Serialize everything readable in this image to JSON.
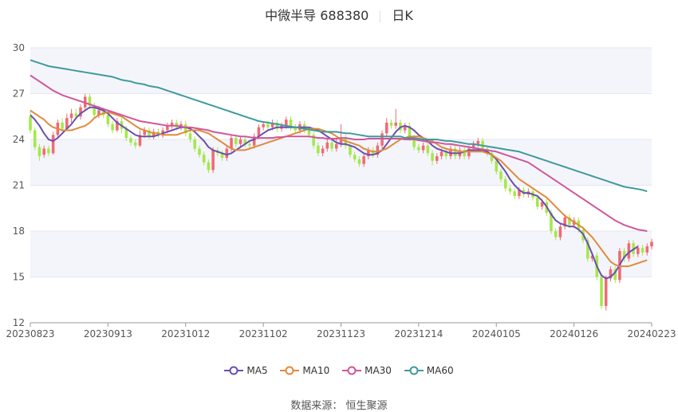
{
  "chart_data": {
    "type": "candlestick",
    "title": "中微半导 688380",
    "period": "日K",
    "ylim": [
      12,
      30
    ],
    "yticks": [
      12,
      15,
      18,
      21,
      24,
      27,
      30
    ],
    "xtick_labels": [
      "20230823",
      "20230913",
      "20231012",
      "20231102",
      "20231123",
      "20231214",
      "20240105",
      "20240126",
      "20240223"
    ],
    "up_color": "#ef6a74",
    "down_color": "#a4e84a",
    "grid": true,
    "legend_position": "bottom",
    "candles": [
      [
        25.5,
        24.6,
        25.9,
        24.4
      ],
      [
        24.6,
        23.5,
        24.8,
        23.3
      ],
      [
        23.5,
        22.9,
        23.7,
        22.6
      ],
      [
        23.0,
        23.4,
        23.6,
        22.8
      ],
      [
        23.4,
        23.1,
        23.6,
        22.9
      ],
      [
        23.1,
        24.3,
        24.5,
        23.0
      ],
      [
        24.3,
        25.1,
        25.3,
        24.1
      ],
      [
        25.1,
        24.7,
        25.4,
        24.5
      ],
      [
        24.7,
        25.4,
        25.7,
        24.6
      ],
      [
        25.4,
        25.7,
        26.0,
        25.1
      ],
      [
        25.7,
        25.5,
        26.0,
        25.3
      ],
      [
        25.5,
        26.1,
        26.3,
        25.3
      ],
      [
        26.1,
        26.8,
        27.0,
        25.9
      ],
      [
        26.8,
        26.2,
        27.0,
        26.0
      ],
      [
        26.2,
        25.6,
        26.4,
        25.4
      ],
      [
        25.6,
        25.9,
        26.2,
        25.4
      ],
      [
        25.9,
        25.6,
        26.1,
        25.4
      ],
      [
        25.6,
        25.0,
        25.8,
        24.8
      ],
      [
        25.0,
        24.6,
        25.2,
        24.4
      ],
      [
        24.6,
        25.2,
        25.4,
        24.5
      ],
      [
        25.2,
        24.7,
        25.4,
        24.4
      ],
      [
        24.7,
        24.1,
        24.9,
        23.9
      ],
      [
        24.1,
        23.8,
        24.3,
        23.6
      ],
      [
        23.8,
        23.6,
        24.0,
        23.4
      ],
      [
        23.6,
        24.3,
        24.6,
        23.5
      ],
      [
        24.3,
        24.6,
        24.8,
        24.1
      ],
      [
        24.6,
        24.2,
        24.8,
        24.0
      ],
      [
        24.2,
        24.5,
        24.7,
        24.0
      ],
      [
        24.5,
        24.3,
        24.7,
        24.1
      ],
      [
        24.3,
        24.6,
        24.8,
        24.1
      ],
      [
        24.6,
        24.9,
        25.1,
        24.4
      ],
      [
        24.9,
        25.1,
        25.3,
        24.7
      ],
      [
        25.1,
        24.8,
        25.3,
        24.6
      ],
      [
        24.8,
        25.0,
        25.2,
        24.6
      ],
      [
        25.0,
        24.4,
        25.2,
        24.2
      ],
      [
        24.4,
        24.0,
        24.6,
        23.8
      ],
      [
        24.0,
        23.4,
        24.2,
        23.2
      ],
      [
        23.4,
        23.0,
        23.6,
        22.8
      ],
      [
        23.0,
        22.5,
        23.2,
        22.3
      ],
      [
        22.5,
        22.0,
        22.7,
        21.8
      ],
      [
        22.0,
        23.3,
        23.5,
        21.8
      ],
      [
        23.3,
        23.1,
        23.5,
        22.9
      ],
      [
        23.1,
        22.8,
        23.3,
        22.6
      ],
      [
        22.8,
        23.4,
        23.6,
        22.6
      ],
      [
        23.4,
        24.1,
        24.3,
        23.2
      ],
      [
        24.1,
        23.7,
        24.3,
        23.5
      ],
      [
        23.7,
        24.0,
        24.2,
        23.5
      ],
      [
        24.0,
        23.7,
        24.2,
        23.5
      ],
      [
        23.7,
        23.6,
        23.9,
        23.4
      ],
      [
        23.6,
        24.2,
        24.4,
        23.4
      ],
      [
        24.2,
        24.8,
        25.0,
        24.0
      ],
      [
        24.8,
        25.0,
        25.2,
        24.6
      ],
      [
        25.0,
        24.8,
        25.2,
        24.6
      ],
      [
        24.8,
        25.1,
        25.3,
        24.6
      ],
      [
        25.1,
        24.7,
        25.3,
        24.5
      ],
      [
        24.7,
        24.9,
        25.1,
        24.5
      ],
      [
        24.9,
        25.3,
        25.5,
        24.7
      ],
      [
        25.3,
        24.8,
        25.5,
        24.6
      ],
      [
        24.8,
        24.6,
        25.0,
        24.4
      ],
      [
        24.6,
        25.0,
        25.2,
        24.4
      ],
      [
        25.0,
        24.6,
        25.2,
        24.4
      ],
      [
        24.6,
        24.3,
        24.8,
        24.1
      ],
      [
        24.3,
        23.6,
        24.5,
        23.4
      ],
      [
        23.6,
        23.1,
        23.8,
        22.9
      ],
      [
        23.1,
        23.4,
        23.6,
        22.9
      ],
      [
        23.4,
        23.8,
        24.0,
        23.2
      ],
      [
        23.8,
        23.4,
        24.0,
        23.2
      ],
      [
        23.4,
        23.7,
        24.0,
        23.2
      ],
      [
        23.7,
        24.1,
        25.0,
        23.5
      ],
      [
        24.1,
        23.6,
        24.3,
        23.4
      ],
      [
        23.6,
        23.0,
        23.8,
        22.8
      ],
      [
        23.0,
        22.7,
        23.2,
        22.5
      ],
      [
        22.7,
        22.4,
        22.9,
        22.2
      ],
      [
        22.4,
        22.9,
        23.1,
        22.2
      ],
      [
        22.9,
        23.3,
        23.5,
        22.7
      ],
      [
        23.3,
        23.0,
        23.5,
        22.8
      ],
      [
        23.0,
        23.6,
        23.8,
        22.8
      ],
      [
        23.6,
        24.4,
        24.6,
        23.4
      ],
      [
        24.4,
        25.1,
        25.4,
        24.2
      ],
      [
        25.1,
        24.9,
        25.3,
        24.7
      ],
      [
        24.9,
        25.1,
        26.0,
        24.7
      ],
      [
        25.1,
        24.6,
        25.3,
        24.4
      ],
      [
        24.6,
        24.9,
        25.1,
        24.4
      ],
      [
        24.9,
        24.1,
        25.1,
        23.9
      ],
      [
        24.1,
        23.5,
        24.3,
        23.3
      ],
      [
        23.5,
        23.3,
        23.7,
        23.1
      ],
      [
        23.3,
        23.6,
        23.8,
        23.1
      ],
      [
        23.6,
        23.1,
        23.8,
        22.9
      ],
      [
        23.1,
        22.6,
        23.3,
        22.3
      ],
      [
        22.6,
        22.9,
        23.1,
        22.4
      ],
      [
        22.9,
        23.2,
        23.4,
        22.7
      ],
      [
        23.2,
        22.9,
        23.4,
        22.7
      ],
      [
        22.9,
        23.4,
        23.6,
        22.7
      ],
      [
        23.4,
        22.9,
        23.6,
        22.7
      ],
      [
        22.9,
        23.3,
        23.5,
        22.7
      ],
      [
        23.3,
        22.9,
        23.5,
        22.7
      ],
      [
        22.9,
        23.4,
        23.6,
        22.7
      ],
      [
        23.4,
        23.7,
        23.9,
        23.2
      ],
      [
        23.7,
        23.9,
        24.1,
        23.5
      ],
      [
        23.9,
        23.4,
        24.1,
        23.2
      ],
      [
        23.4,
        23.1,
        23.6,
        22.9
      ],
      [
        23.1,
        22.6,
        23.3,
        22.4
      ],
      [
        22.6,
        21.9,
        22.8,
        21.7
      ],
      [
        21.9,
        21.4,
        22.1,
        21.2
      ],
      [
        21.4,
        20.8,
        21.6,
        20.6
      ],
      [
        20.8,
        20.6,
        21.0,
        20.4
      ],
      [
        20.6,
        20.3,
        20.8,
        20.1
      ],
      [
        20.3,
        20.7,
        20.9,
        20.1
      ],
      [
        20.7,
        20.4,
        20.9,
        20.2
      ],
      [
        20.4,
        20.6,
        20.8,
        20.2
      ],
      [
        20.6,
        20.2,
        20.8,
        20.0
      ],
      [
        20.2,
        19.6,
        20.4,
        19.4
      ],
      [
        19.6,
        19.9,
        20.1,
        19.4
      ],
      [
        19.9,
        19.2,
        20.1,
        19.0
      ],
      [
        19.2,
        18.0,
        19.4,
        17.8
      ],
      [
        18.0,
        17.6,
        18.2,
        17.4
      ],
      [
        17.6,
        18.3,
        18.5,
        17.4
      ],
      [
        18.3,
        18.9,
        19.1,
        18.1
      ],
      [
        18.9,
        18.4,
        19.1,
        18.2
      ],
      [
        18.4,
        18.7,
        18.9,
        18.2
      ],
      [
        18.7,
        18.1,
        18.9,
        17.9
      ],
      [
        18.1,
        17.4,
        18.3,
        17.2
      ],
      [
        17.4,
        16.2,
        17.6,
        16.0
      ],
      [
        16.2,
        16.4,
        16.6,
        16.0
      ],
      [
        16.4,
        15.0,
        16.6,
        14.8
      ],
      [
        15.0,
        13.1,
        15.2,
        12.9
      ],
      [
        13.1,
        14.9,
        15.1,
        12.8
      ],
      [
        14.9,
        15.5,
        15.7,
        14.7
      ],
      [
        15.5,
        14.8,
        15.7,
        14.6
      ],
      [
        14.8,
        16.7,
        16.9,
        14.6
      ],
      [
        16.7,
        16.2,
        16.9,
        16.0
      ],
      [
        16.2,
        17.2,
        17.4,
        16.0
      ],
      [
        17.2,
        16.5,
        17.4,
        16.3
      ],
      [
        16.5,
        16.9,
        17.1,
        16.3
      ],
      [
        16.9,
        16.6,
        17.1,
        16.4
      ],
      [
        16.6,
        17.0,
        17.2,
        16.4
      ],
      [
        17.0,
        17.3,
        17.5,
        16.8
      ]
    ],
    "series": [
      {
        "name": "MA5",
        "color": "#6a4fb0",
        "values": [
          25.6,
          25.3,
          24.9,
          24.4,
          24.0,
          23.9,
          24.1,
          24.4,
          24.7,
          25.0,
          25.4,
          25.7,
          25.9,
          26.1,
          26.1,
          26.0,
          25.9,
          25.7,
          25.4,
          25.1,
          24.9,
          24.7,
          24.5,
          24.3,
          24.2,
          24.2,
          24.2,
          24.2,
          24.3,
          24.4,
          24.5,
          24.6,
          24.7,
          24.8,
          24.8,
          24.7,
          24.5,
          24.2,
          23.9,
          23.5,
          23.3,
          23.2,
          23.1,
          23.0,
          23.1,
          23.3,
          23.5,
          23.7,
          23.9,
          24.0,
          24.2,
          24.4,
          24.6,
          24.7,
          24.8,
          24.8,
          24.8,
          24.8,
          24.8,
          24.8,
          24.8,
          24.8,
          24.7,
          24.6,
          24.4,
          24.2,
          24.0,
          23.8,
          23.7,
          23.7,
          23.6,
          23.5,
          23.3,
          23.1,
          23.0,
          23.0,
          23.1,
          23.3,
          23.7,
          24.1,
          24.5,
          24.8,
          24.9,
          24.8,
          24.6,
          24.3,
          24.1,
          23.9,
          23.6,
          23.4,
          23.3,
          23.2,
          23.1,
          23.1,
          23.1,
          23.2,
          23.3,
          23.3,
          23.3,
          23.3,
          23.2,
          23.0,
          22.7,
          22.3,
          21.9,
          21.4,
          21.0,
          20.7,
          20.5,
          20.5,
          20.4,
          20.3,
          20.0,
          19.6,
          19.1,
          18.7,
          18.5,
          18.4,
          18.3,
          18.3,
          18.1,
          17.8,
          17.2,
          16.5,
          15.7,
          15.1,
          14.9,
          15.0,
          15.3,
          15.8,
          16.3,
          16.6,
          16.8,
          17.0
        ]
      },
      {
        "name": "MA10",
        "color": "#e08a3c",
        "values": [
          25.9,
          25.7,
          25.5,
          25.3,
          25.0,
          24.8,
          24.7,
          24.6,
          24.6,
          24.6,
          24.7,
          24.8,
          24.9,
          25.1,
          25.4,
          25.6,
          25.7,
          25.8,
          25.7,
          25.6,
          25.5,
          25.3,
          25.1,
          24.9,
          24.7,
          24.6,
          24.5,
          24.4,
          24.4,
          24.3,
          24.3,
          24.3,
          24.3,
          24.4,
          24.5,
          24.6,
          24.6,
          24.6,
          24.5,
          24.4,
          24.2,
          24.0,
          23.8,
          23.6,
          23.4,
          23.3,
          23.3,
          23.3,
          23.4,
          23.5,
          23.6,
          23.7,
          23.8,
          23.9,
          24.0,
          24.1,
          24.2,
          24.3,
          24.4,
          24.5,
          24.6,
          24.7,
          24.7,
          24.7,
          24.6,
          24.5,
          24.4,
          24.2,
          24.0,
          23.9,
          23.8,
          23.7,
          23.6,
          23.4,
          23.3,
          23.2,
          23.2,
          23.3,
          23.4,
          23.6,
          23.8,
          24.0,
          24.1,
          24.2,
          24.2,
          24.2,
          24.1,
          24.0,
          23.9,
          23.7,
          23.5,
          23.4,
          23.3,
          23.3,
          23.2,
          23.2,
          23.2,
          23.2,
          23.2,
          23.2,
          23.1,
          23.0,
          22.8,
          22.6,
          22.3,
          22.0,
          21.7,
          21.4,
          21.2,
          21.0,
          20.8,
          20.6,
          20.4,
          20.2,
          19.9,
          19.6,
          19.3,
          19.0,
          18.8,
          18.6,
          18.4,
          18.2,
          17.9,
          17.6,
          17.2,
          16.8,
          16.4,
          16.0,
          15.8,
          15.7,
          15.7,
          15.7,
          15.8,
          15.9,
          16.0,
          16.1
        ]
      },
      {
        "name": "MA30",
        "color": "#d0569a",
        "values": [
          28.2,
          28.0,
          27.8,
          27.6,
          27.4,
          27.2,
          27.05,
          26.9,
          26.8,
          26.7,
          26.6,
          26.5,
          26.4,
          26.3,
          26.2,
          26.1,
          26.0,
          25.9,
          25.8,
          25.7,
          25.6,
          25.5,
          25.4,
          25.3,
          25.2,
          25.15,
          25.1,
          25.05,
          25.0,
          24.95,
          24.9,
          24.9,
          24.9,
          24.85,
          24.8,
          24.8,
          24.75,
          24.7,
          24.65,
          24.6,
          24.5,
          24.45,
          24.4,
          24.35,
          24.3,
          24.25,
          24.2,
          24.2,
          24.15,
          24.1,
          24.1,
          24.1,
          24.1,
          24.1,
          24.15,
          24.15,
          24.2,
          24.2,
          24.2,
          24.2,
          24.2,
          24.2,
          24.15,
          24.1,
          24.1,
          24.05,
          24.05,
          24.05,
          24.1,
          24.1,
          24.05,
          24.0,
          24.0,
          24.0,
          24.05,
          24.05,
          24.05,
          24.05,
          24.05,
          24.05,
          24.05,
          24.05,
          24.0,
          24.0,
          24.0,
          23.95,
          23.9,
          23.85,
          23.8,
          23.8,
          23.75,
          23.7,
          23.7,
          23.65,
          23.6,
          23.55,
          23.5,
          23.45,
          23.4,
          23.35,
          23.3,
          23.25,
          23.2,
          23.1,
          23.0,
          22.9,
          22.8,
          22.7,
          22.6,
          22.5,
          22.3,
          22.1,
          21.9,
          21.7,
          21.5,
          21.3,
          21.1,
          20.9,
          20.7,
          20.5,
          20.3,
          20.1,
          19.9,
          19.7,
          19.5,
          19.3,
          19.1,
          18.9,
          18.7,
          18.55,
          18.4,
          18.3,
          18.2,
          18.1,
          18.05,
          18.0
        ]
      },
      {
        "name": "MA60",
        "color": "#3f9a9c",
        "values": [
          29.2,
          29.1,
          29.0,
          28.9,
          28.8,
          28.75,
          28.7,
          28.65,
          28.6,
          28.55,
          28.5,
          28.45,
          28.4,
          28.35,
          28.3,
          28.25,
          28.2,
          28.15,
          28.1,
          28.0,
          27.9,
          27.85,
          27.8,
          27.7,
          27.65,
          27.6,
          27.5,
          27.45,
          27.4,
          27.3,
          27.2,
          27.1,
          27.0,
          26.9,
          26.8,
          26.7,
          26.6,
          26.5,
          26.4,
          26.3,
          26.2,
          26.1,
          26.0,
          25.9,
          25.8,
          25.7,
          25.6,
          25.5,
          25.4,
          25.3,
          25.2,
          25.15,
          25.1,
          25.05,
          25.0,
          24.95,
          24.9,
          24.85,
          24.8,
          24.75,
          24.7,
          24.65,
          24.6,
          24.55,
          24.5,
          24.5,
          24.5,
          24.5,
          24.45,
          24.4,
          24.4,
          24.35,
          24.3,
          24.25,
          24.2,
          24.2,
          24.2,
          24.2,
          24.2,
          24.2,
          24.2,
          24.2,
          24.1,
          24.1,
          24.1,
          24.05,
          24.0,
          24.0,
          24.0,
          24.0,
          23.95,
          23.9,
          23.9,
          23.85,
          23.8,
          23.75,
          23.7,
          23.7,
          23.65,
          23.6,
          23.55,
          23.5,
          23.45,
          23.4,
          23.35,
          23.3,
          23.25,
          23.2,
          23.1,
          23.0,
          22.9,
          22.8,
          22.7,
          22.6,
          22.5,
          22.4,
          22.3,
          22.2,
          22.1,
          22.0,
          21.9,
          21.8,
          21.7,
          21.6,
          21.5,
          21.4,
          21.3,
          21.2,
          21.1,
          21.0,
          20.9,
          20.85,
          20.8,
          20.75,
          20.7,
          20.6
        ]
      }
    ]
  },
  "header": {
    "title": "中微半导 688380",
    "period": "日K"
  },
  "legend": {
    "items": [
      "MA5",
      "MA10",
      "MA30",
      "MA60"
    ]
  },
  "footer": {
    "source": "数据来源： 恒生聚源"
  }
}
